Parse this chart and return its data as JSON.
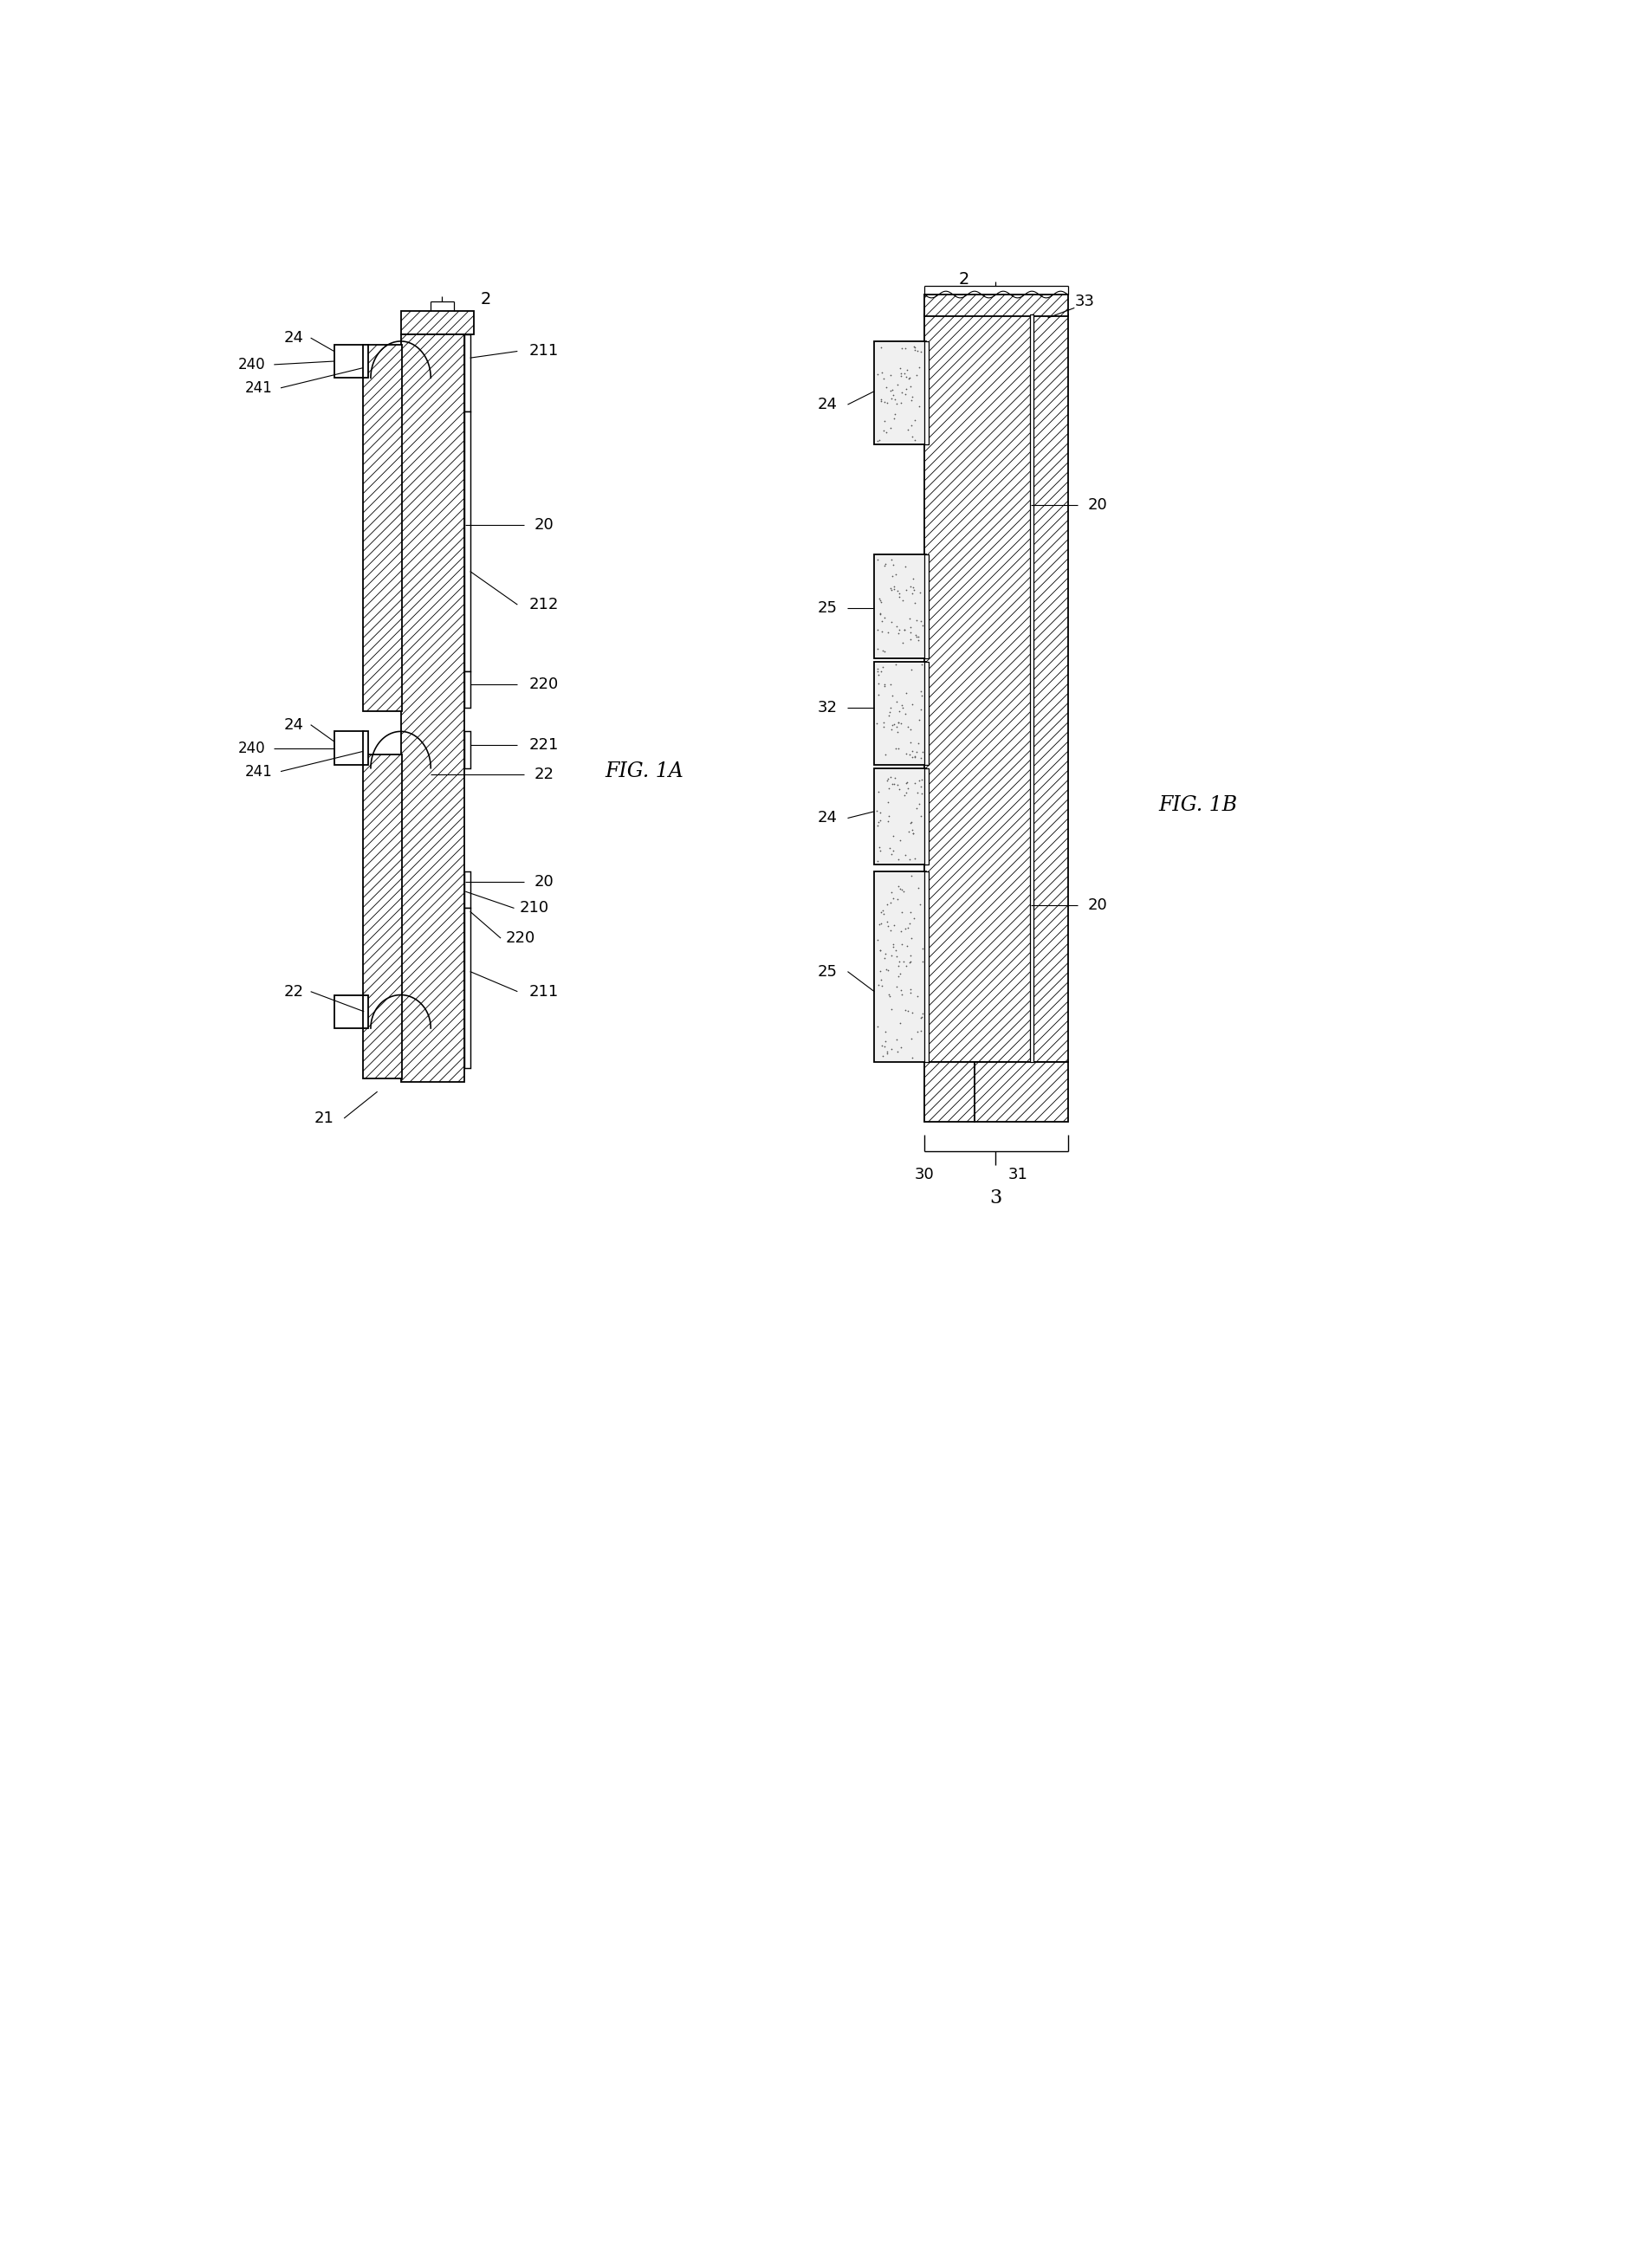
{
  "fig_width": 19.07,
  "fig_height": 26.09,
  "bg_color": "#ffffff",
  "line_color": "#000000",
  "fig1a_label": "FIG. 1A",
  "fig1b_label": "FIG. 1B",
  "lw": 1.3,
  "hatch_lw": 0.6,
  "fs": 13
}
